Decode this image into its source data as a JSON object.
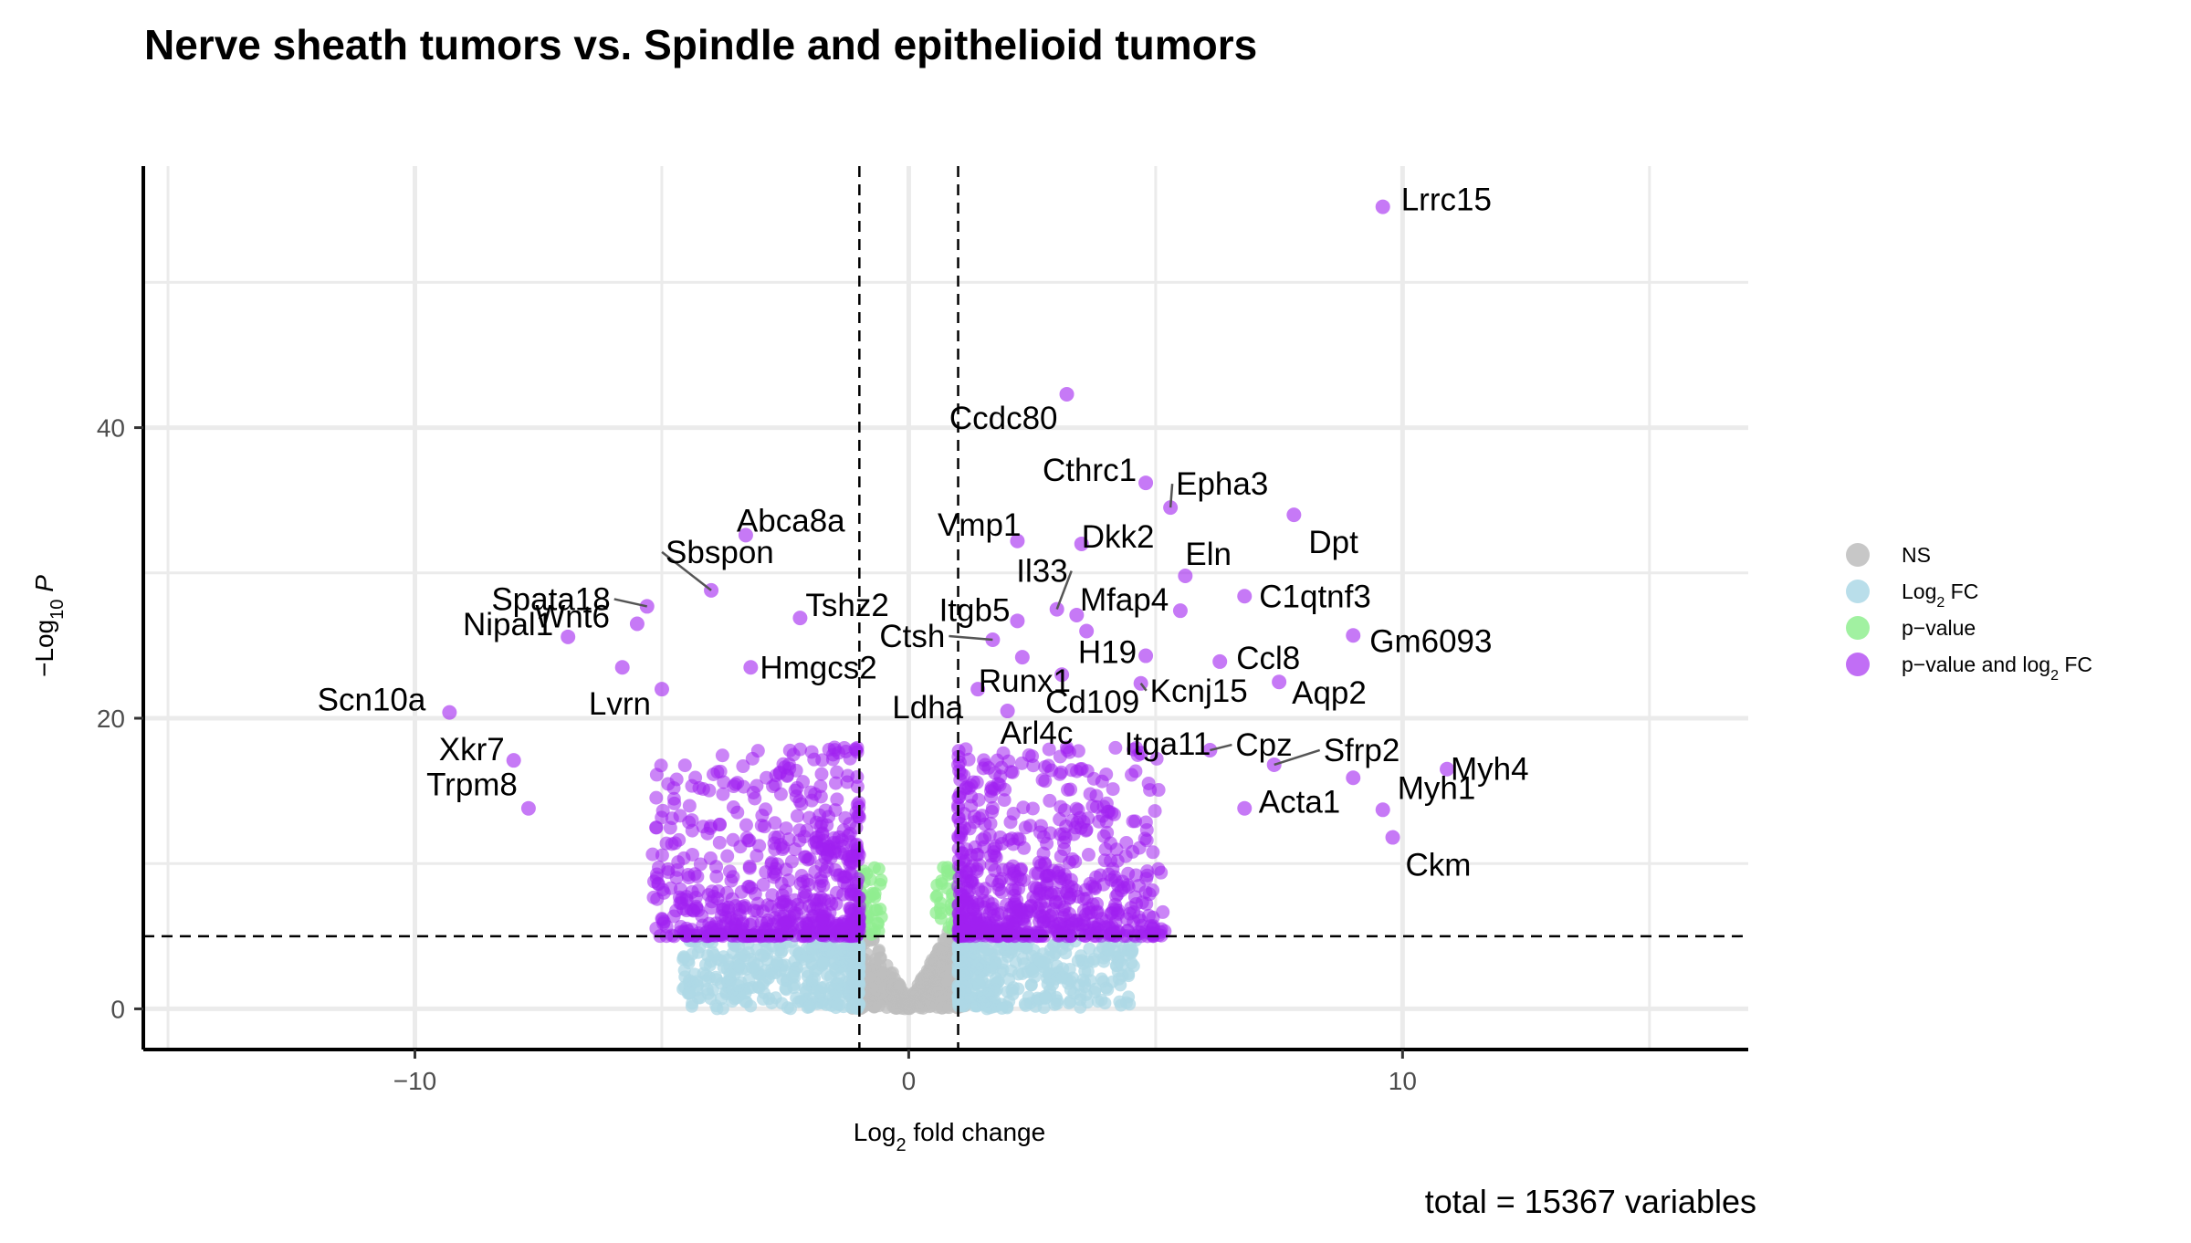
{
  "chart_data": {
    "type": "scatter",
    "title": "Nerve sheath tumors vs. Spindle and epithelioid tumors",
    "xlabel": "Log2 fold change",
    "ylabel": "−Log10 P",
    "caption": "total = 15367 variables",
    "xlim": [
      -15.5,
      17
    ],
    "ylim": [
      -2.8,
      58
    ],
    "x_ticks": [
      -10,
      0,
      10
    ],
    "x_tick_labels": [
      "−10",
      "0",
      "10"
    ],
    "y_ticks": [
      0,
      20,
      40
    ],
    "y_tick_labels": [
      "0",
      "20",
      "40"
    ],
    "thresholds": {
      "log2fc": 1,
      "neg_log10_p": 5
    },
    "grid": true,
    "legend_position": "right",
    "legend": [
      {
        "label": "NS",
        "color": "#bdbdbd"
      },
      {
        "label": "Log2 FC",
        "color": "#add8e6"
      },
      {
        "label": "p−value",
        "color": "#90ee90"
      },
      {
        "label": "p−value and log2 FC",
        "color": "#a020f0"
      }
    ],
    "points": [
      {
        "x": 9.6,
        "y": 55.2,
        "label": "Lrrc15"
      },
      {
        "x": 3.2,
        "y": 42.3,
        "label": "Ccdc80"
      },
      {
        "x": 4.8,
        "y": 36.2,
        "label": "Cthrc1"
      },
      {
        "x": 5.3,
        "y": 34.5,
        "label": "Epha3"
      },
      {
        "x": 7.8,
        "y": 34.0,
        "label": "Dpt"
      },
      {
        "x": -3.3,
        "y": 32.6,
        "label": "Abca8a"
      },
      {
        "x": 2.2,
        "y": 32.2,
        "label": "Vmp1"
      },
      {
        "x": 3.5,
        "y": 32.0,
        "label": "Dkk2"
      },
      {
        "x": 5.6,
        "y": 29.8,
        "label": "Eln"
      },
      {
        "x": -4.0,
        "y": 28.8,
        "label": "Sbspon"
      },
      {
        "x": 6.8,
        "y": 28.4,
        "label": "C1qtnf3"
      },
      {
        "x": -5.3,
        "y": 27.7,
        "label": "Spata18"
      },
      {
        "x": 3.0,
        "y": 27.5,
        "label": "Il33"
      },
      {
        "x": 5.5,
        "y": 27.4,
        "label": "Mfap4"
      },
      {
        "x": 3.4,
        "y": 27.1,
        "label": ""
      },
      {
        "x": -2.2,
        "y": 26.9,
        "label": "Tshz2"
      },
      {
        "x": 2.2,
        "y": 26.7,
        "label": "Itgb5"
      },
      {
        "x": -5.5,
        "y": 26.5,
        "label": "Wnt6"
      },
      {
        "x": 3.6,
        "y": 26.0,
        "label": ""
      },
      {
        "x": -6.9,
        "y": 25.6,
        "label": "Nipal1"
      },
      {
        "x": 9.0,
        "y": 25.7,
        "label": "Gm6093"
      },
      {
        "x": 1.7,
        "y": 25.4,
        "label": "Ctsh"
      },
      {
        "x": 4.8,
        "y": 24.3,
        "label": "H19"
      },
      {
        "x": 6.3,
        "y": 23.9,
        "label": "Ccl8"
      },
      {
        "x": 2.3,
        "y": 24.2,
        "label": "Runx1"
      },
      {
        "x": -3.2,
        "y": 23.5,
        "label": "Hmgcs2"
      },
      {
        "x": -5.8,
        "y": 23.5,
        "label": ""
      },
      {
        "x": 3.1,
        "y": 23.0,
        "label": "Cd109"
      },
      {
        "x": 4.7,
        "y": 22.4,
        "label": "Kcnj15"
      },
      {
        "x": 7.5,
        "y": 22.5,
        "label": "Aqp2"
      },
      {
        "x": 1.4,
        "y": 22.0,
        "label": "Ldha"
      },
      {
        "x": -5.0,
        "y": 22.0,
        "label": "Lvrn"
      },
      {
        "x": 2.0,
        "y": 20.5,
        "label": "Arl4c"
      },
      {
        "x": -9.3,
        "y": 20.4,
        "label": "Scn10a"
      },
      {
        "x": 4.7,
        "y": 17.6,
        "label": "Itga11"
      },
      {
        "x": 6.1,
        "y": 17.8,
        "label": "Cpz"
      },
      {
        "x": 7.4,
        "y": 16.8,
        "label": "Sfrp2"
      },
      {
        "x": 10.9,
        "y": 16.5,
        "label": "Myh4"
      },
      {
        "x": -8.0,
        "y": 17.1,
        "label": "Xkr7"
      },
      {
        "x": 9.0,
        "y": 15.9,
        "label": "Acta1"
      },
      {
        "x": 6.8,
        "y": 13.8,
        "label": ""
      },
      {
        "x": 9.6,
        "y": 13.7,
        "label": "Myh1"
      },
      {
        "x": -7.7,
        "y": 13.8,
        "label": "Trpm8"
      },
      {
        "x": 9.8,
        "y": 11.8,
        "label": "Ckm"
      }
    ]
  }
}
